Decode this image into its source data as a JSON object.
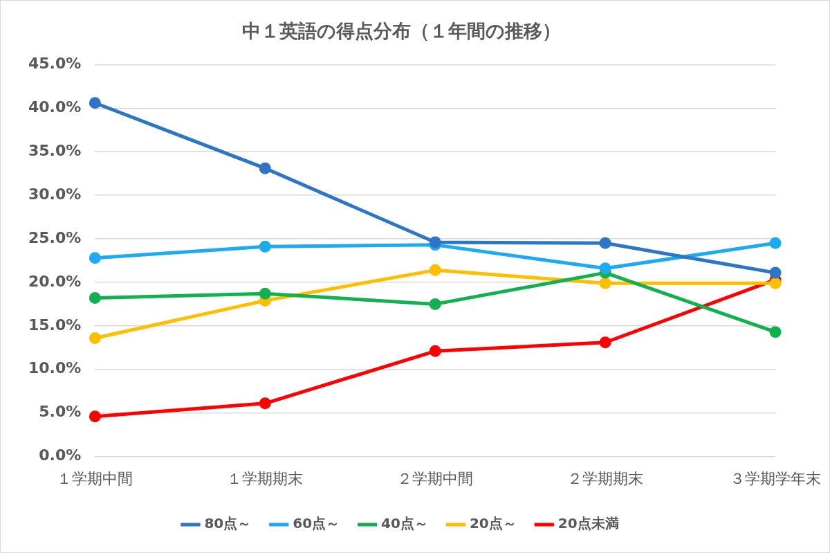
{
  "chart_data": {
    "type": "line",
    "title": "中１英語の得点分布（１年間の推移）",
    "categories": [
      "１学期中間",
      "１学期期末",
      "２学期中間",
      "２学期期末",
      "３学期学年末"
    ],
    "series": [
      {
        "name": "80点～",
        "color": "#2e75c6",
        "values": [
          40.6,
          33.1,
          24.6,
          24.5,
          21.1
        ]
      },
      {
        "name": "60点～",
        "color": "#1eaaf0",
        "values": [
          22.8,
          24.1,
          24.3,
          21.6,
          24.5
        ]
      },
      {
        "name": "40点～",
        "color": "#12b04e",
        "values": [
          18.2,
          18.7,
          17.5,
          21.1,
          14.3
        ]
      },
      {
        "name": "20点～",
        "color": "#ffbf00",
        "values": [
          13.6,
          17.9,
          21.4,
          19.9,
          19.9
        ]
      },
      {
        "name": "20点未満",
        "color": "#ff0000",
        "values": [
          4.6,
          6.1,
          12.1,
          13.1,
          20.3
        ]
      }
    ],
    "ylim": [
      0,
      45
    ],
    "yticks": [
      {
        "value": 0,
        "label": "0.0%"
      },
      {
        "value": 5,
        "label": "5.0%"
      },
      {
        "value": 10,
        "label": "10.0%"
      },
      {
        "value": 15,
        "label": "15.0%"
      },
      {
        "value": 20,
        "label": "20.0%"
      },
      {
        "value": 25,
        "label": "25.0%"
      },
      {
        "value": 30,
        "label": "30.0%"
      },
      {
        "value": 35,
        "label": "35.0%"
      },
      {
        "value": 40,
        "label": "40.0%"
      },
      {
        "value": 45,
        "label": "45.0%"
      }
    ],
    "grid": "y",
    "legend": "bottom",
    "marker": "circle",
    "line_style": "solid"
  }
}
